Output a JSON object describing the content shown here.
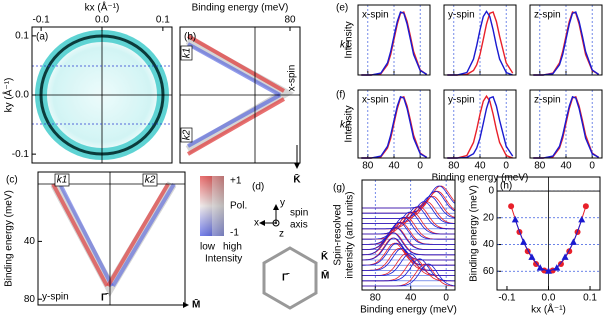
{
  "chart_data": [
    {
      "type": "map",
      "label": "(a)",
      "xlabel": "kx (Å⁻¹)",
      "ylabel": "ky (Å⁻¹)",
      "xaxis": "top",
      "xlim": [
        -0.115,
        0.115
      ],
      "xticks": [
        -0.1,
        {
          "value": 0,
          "label": "0.0"
        },
        0.1
      ],
      "ylim": [
        -0.115,
        0.115
      ],
      "yticks": [
        -0.1,
        {
          "value": 0,
          "label": "0.0"
        },
        0.1
      ]
    },
    {
      "type": "map",
      "label": "(b)",
      "xlabel": "Binding energy (meV)",
      "xaxis": "top",
      "xlim": [
        -8,
        88
      ],
      "xticks": [
        80
      ],
      "annotations": [
        "x-spin",
        "k1",
        "k2",
        "K̄"
      ]
    },
    {
      "type": "map",
      "label": "(c)",
      "ylabel": "Binding energy (meV)",
      "ylim": [
        84,
        -8
      ],
      "yticks": [
        40,
        80
      ],
      "annotations": [
        "k1",
        "k2",
        "y-spin",
        "Γ̄",
        "M̄"
      ]
    },
    {
      "type": "line",
      "label": "(e)",
      "row_label": "k1",
      "ylabel": "Intensity",
      "title": "x-spin",
      "tick_labels": false,
      "x": [
        90,
        75,
        60,
        50,
        45,
        40,
        35,
        30,
        25,
        20,
        15,
        10,
        0,
        -10
      ],
      "xlim": [
        95,
        -15
      ],
      "xticks": [
        80,
        40,
        0
      ],
      "ylim": [
        0,
        1.1
      ],
      "series": [
        {
          "color": "#e8202a",
          "values": [
            0,
            0,
            0.02,
            0.16,
            0.32,
            0.56,
            0.8,
            0.97,
            0.99,
            0.84,
            0.61,
            0.37,
            0.08,
            0.01
          ]
        },
        {
          "color": "#1a1ad0",
          "values": [
            0,
            0,
            0.03,
            0.19,
            0.37,
            0.61,
            0.84,
            0.99,
            0.97,
            0.8,
            0.56,
            0.32,
            0.07,
            0.01
          ]
        }
      ]
    },
    {
      "type": "line",
      "title": "y-spin",
      "tick_labels": false,
      "x": [
        90,
        75,
        60,
        50,
        45,
        40,
        35,
        30,
        25,
        20,
        15,
        10,
        0,
        -10
      ],
      "xlim": [
        95,
        -15
      ],
      "xticks": [
        80,
        40,
        0
      ],
      "ylim": [
        0,
        1.1
      ],
      "series": [
        {
          "color": "#e8202a",
          "values": [
            0,
            0,
            0.01,
            0.07,
            0.16,
            0.32,
            0.56,
            0.8,
            0.97,
            0.99,
            0.84,
            0.61,
            0.19,
            0.03
          ]
        },
        {
          "color": "#1a1ad0",
          "values": [
            0,
            0,
            0.04,
            0.25,
            0.46,
            0.71,
            0.92,
            1,
            0.92,
            0.71,
            0.46,
            0.25,
            0.04,
            0
          ]
        }
      ]
    },
    {
      "type": "line",
      "title": "z-spin",
      "tick_labels": false,
      "x": [
        90,
        75,
        60,
        50,
        45,
        40,
        35,
        30,
        25,
        20,
        15,
        10,
        0,
        -10
      ],
      "xlim": [
        95,
        -15
      ],
      "xticks": [
        80,
        40,
        0
      ],
      "ylim": [
        0,
        1.1
      ],
      "series": [
        {
          "color": "#e8202a",
          "values": [
            0,
            0,
            0.03,
            0.19,
            0.37,
            0.61,
            0.84,
            0.99,
            0.97,
            0.8,
            0.56,
            0.32,
            0.07,
            0.01
          ]
        },
        {
          "color": "#1a1ad0",
          "values": [
            0,
            0,
            0.02,
            0.16,
            0.32,
            0.56,
            0.8,
            0.97,
            0.99,
            0.84,
            0.61,
            0.37,
            0.08,
            0.01
          ]
        }
      ]
    },
    {
      "type": "line",
      "label": "(f)",
      "row_label": "k2",
      "ylabel": "Intensity",
      "title": "x-spin",
      "x": [
        90,
        75,
        60,
        50,
        45,
        40,
        35,
        30,
        25,
        20,
        15,
        10,
        0,
        -10
      ],
      "xlim": [
        95,
        -15
      ],
      "xticks": [
        80,
        40,
        0
      ],
      "ylim": [
        0,
        1.1
      ],
      "series": [
        {
          "color": "#e8202a",
          "values": [
            0,
            0,
            0.02,
            0.16,
            0.32,
            0.56,
            0.8,
            0.97,
            0.99,
            0.84,
            0.61,
            0.37,
            0.08,
            0.01
          ]
        },
        {
          "color": "#1a1ad0",
          "values": [
            0,
            0,
            0.03,
            0.19,
            0.37,
            0.61,
            0.84,
            0.99,
            0.97,
            0.8,
            0.56,
            0.32,
            0.07,
            0.01
          ]
        }
      ]
    },
    {
      "type": "line",
      "title": "y-spin",
      "xlabel": "Binding energy (meV)",
      "x": [
        90,
        75,
        60,
        50,
        45,
        40,
        35,
        30,
        25,
        20,
        15,
        10,
        0,
        -10
      ],
      "xlim": [
        95,
        -15
      ],
      "xticks": [
        80,
        40,
        0
      ],
      "ylim": [
        0,
        1.1
      ],
      "series": [
        {
          "color": "#e8202a",
          "values": [
            0,
            0,
            0.04,
            0.25,
            0.46,
            0.71,
            0.92,
            1,
            0.92,
            0.71,
            0.46,
            0.25,
            0.04,
            0
          ]
        },
        {
          "color": "#1a1ad0",
          "values": [
            0,
            0,
            0.01,
            0.07,
            0.16,
            0.32,
            0.56,
            0.8,
            0.97,
            0.99,
            0.84,
            0.61,
            0.19,
            0.03
          ]
        }
      ]
    },
    {
      "type": "line",
      "title": "z-spin",
      "x": [
        90,
        75,
        60,
        50,
        45,
        40,
        35,
        30,
        25,
        20,
        15,
        10,
        0,
        -10
      ],
      "xlim": [
        95,
        -15
      ],
      "xticks": [
        80,
        40,
        0
      ],
      "ylim": [
        0,
        1.1
      ],
      "series": [
        {
          "color": "#e8202a",
          "values": [
            0,
            0,
            0.02,
            0.16,
            0.32,
            0.56,
            0.8,
            0.97,
            0.99,
            0.84,
            0.61,
            0.37,
            0.08,
            0.01
          ]
        },
        {
          "color": "#1a1ad0",
          "values": [
            0,
            0,
            0.03,
            0.19,
            0.37,
            0.61,
            0.84,
            0.99,
            0.97,
            0.8,
            0.56,
            0.32,
            0.07,
            0.01
          ]
        }
      ]
    },
    {
      "type": "waterfall",
      "label": "(g)",
      "ylabel": [
        "Spin-resolved",
        "intensity (arb. units)"
      ],
      "xlabel": "Binding energy (meV)",
      "xlim": [
        95,
        -10
      ],
      "xticks": [
        80,
        40,
        0
      ],
      "series": [
        {
          "color": "#e8202a",
          "values": [
            6,
            10,
            15,
            22,
            30,
            38,
            45,
            51,
            56,
            59,
            60,
            58,
            53,
            45,
            35,
            24
          ]
        },
        {
          "color": "#1a1ad0",
          "values": [
            8,
            12,
            18,
            25,
            33,
            41,
            48,
            53,
            57,
            60,
            59,
            56,
            50,
            41,
            30,
            20
          ]
        }
      ]
    },
    {
      "type": "scatter",
      "label": "(h)",
      "ylabel": "Binding energy (meV)",
      "xlabel": "kx (Å⁻¹)",
      "grid": true,
      "xlim": [
        -0.124,
        0.124
      ],
      "xticks": [
        -0.1,
        {
          "value": 0,
          "label": "0.0"
        },
        0.1
      ],
      "ylim": [
        74,
        -10.5
      ],
      "yticks": [
        0,
        20,
        40,
        60
      ],
      "series": [
        {
          "color": "#e8202a",
          "marker": "circle",
          "x": [
            -0.09,
            -0.07,
            -0.05,
            -0.03,
            -0.01,
            0.01,
            0.03,
            0.05,
            0.07,
            0.09
          ],
          "values": [
            11.4,
            30.6,
            45,
            54.6,
            59.4,
            59.4,
            54.6,
            45,
            30.6,
            11.4
          ]
        },
        {
          "color": "#1a1ad0",
          "marker": "triangle",
          "x": [
            -0.08,
            -0.06,
            -0.04,
            -0.02,
            0,
            0.02,
            0.04,
            0.06,
            0.08
          ],
          "values": [
            21.6,
            38.4,
            49.6,
            57.6,
            60,
            57.6,
            49.6,
            38.4,
            21.6
          ]
        }
      ]
    }
  ],
  "colorbar": {
    "top": "+1",
    "title": "Pol.",
    "bottom": "-1",
    "low": "low",
    "high": "high",
    "label": "Intensity"
  },
  "brillouin_zone": {
    "label": "(d)",
    "y": "y",
    "x": "x",
    "z": "z",
    "spin": "spin",
    "axis": "axis",
    "k": "K̄",
    "m": "M̄",
    "gamma": "Γ̄"
  }
}
